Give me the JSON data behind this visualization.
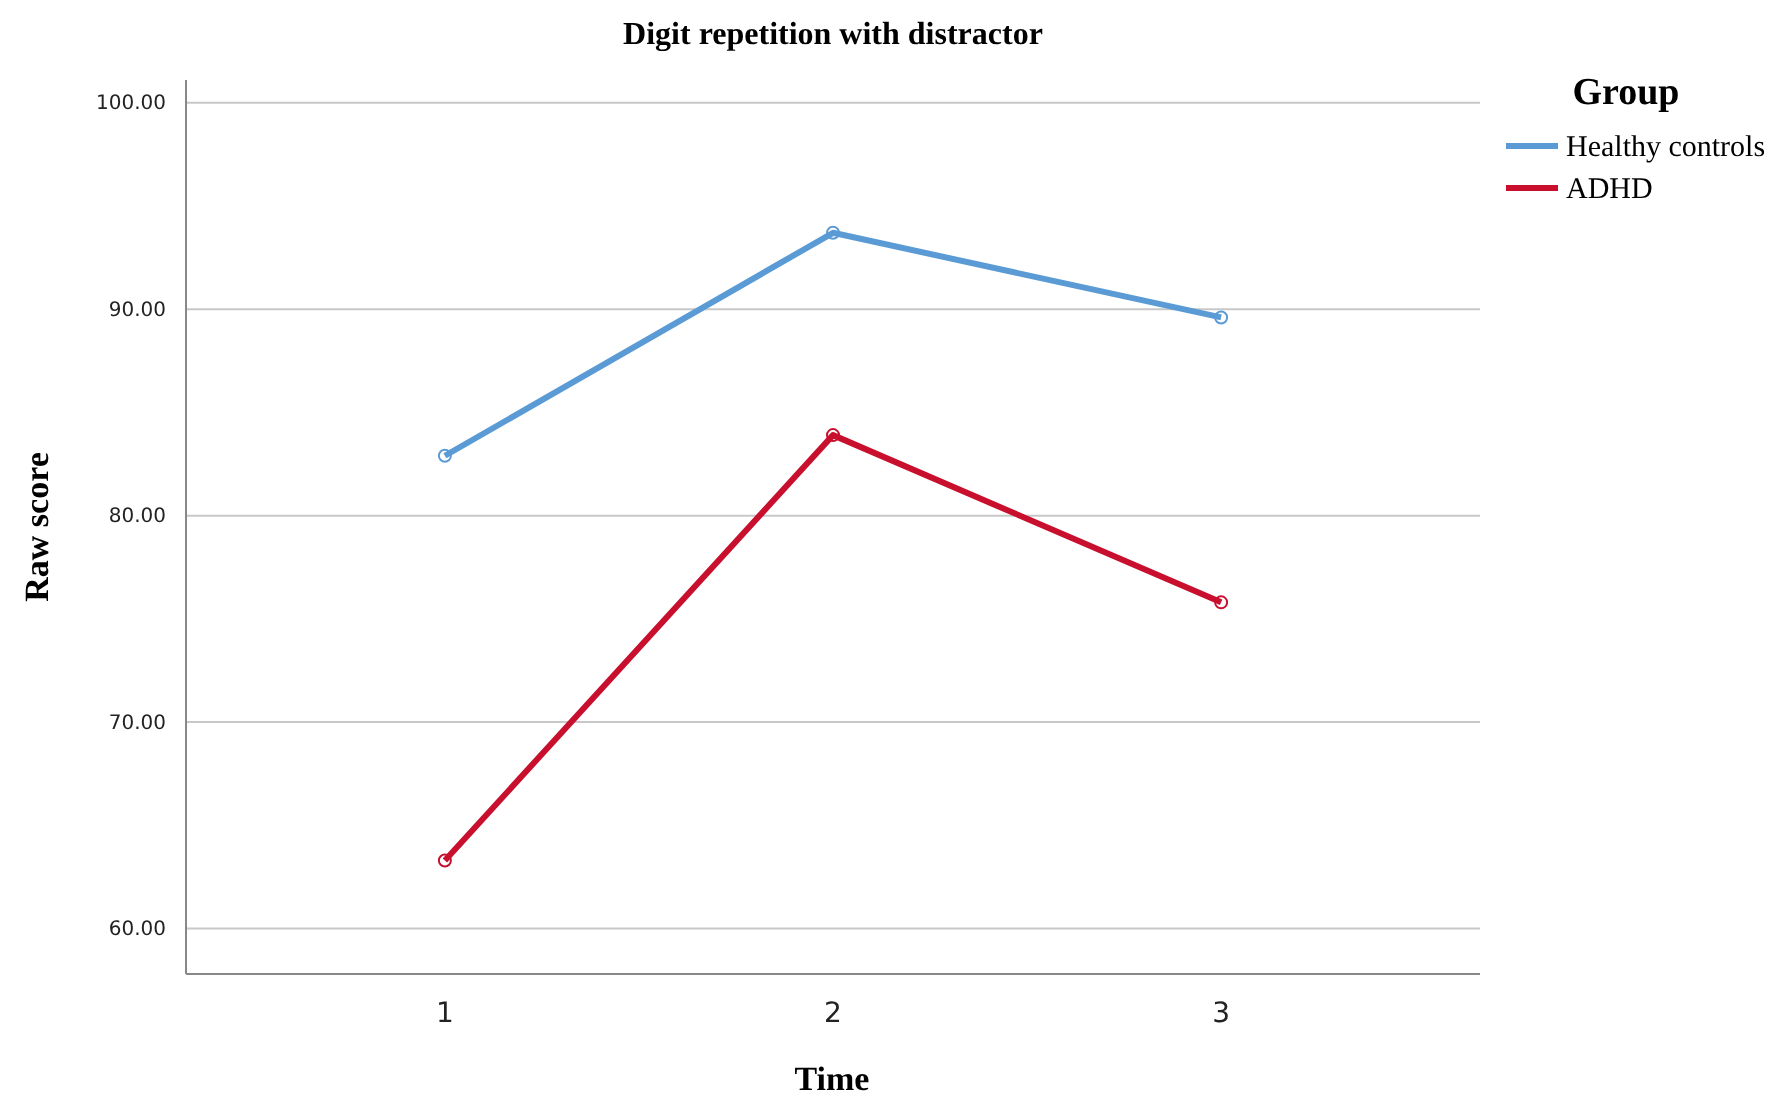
{
  "chart_data": {
    "type": "line",
    "title": "Digit repetition with distractor",
    "xlabel": "Time",
    "ylabel": "Raw score",
    "legend_title": "Group",
    "categories": [
      "1",
      "2",
      "3"
    ],
    "series": [
      {
        "name": "Healthy controls",
        "color": "#5b9bd5",
        "values": [
          82.9,
          93.7,
          89.6
        ]
      },
      {
        "name": "ADHD",
        "color": "#c8102e",
        "values": [
          63.3,
          83.9,
          75.8
        ]
      }
    ],
    "ylim": [
      57.8,
      101.1
    ],
    "yticks": [
      {
        "value": 60,
        "label": "60.00"
      },
      {
        "value": 70,
        "label": "70.00"
      },
      {
        "value": 80,
        "label": "80.00"
      },
      {
        "value": 90,
        "label": "90.00"
      },
      {
        "value": 100,
        "label": "100.00"
      }
    ],
    "grid": "y",
    "legend": "top right",
    "marker": "circle",
    "line_style": "solid"
  }
}
